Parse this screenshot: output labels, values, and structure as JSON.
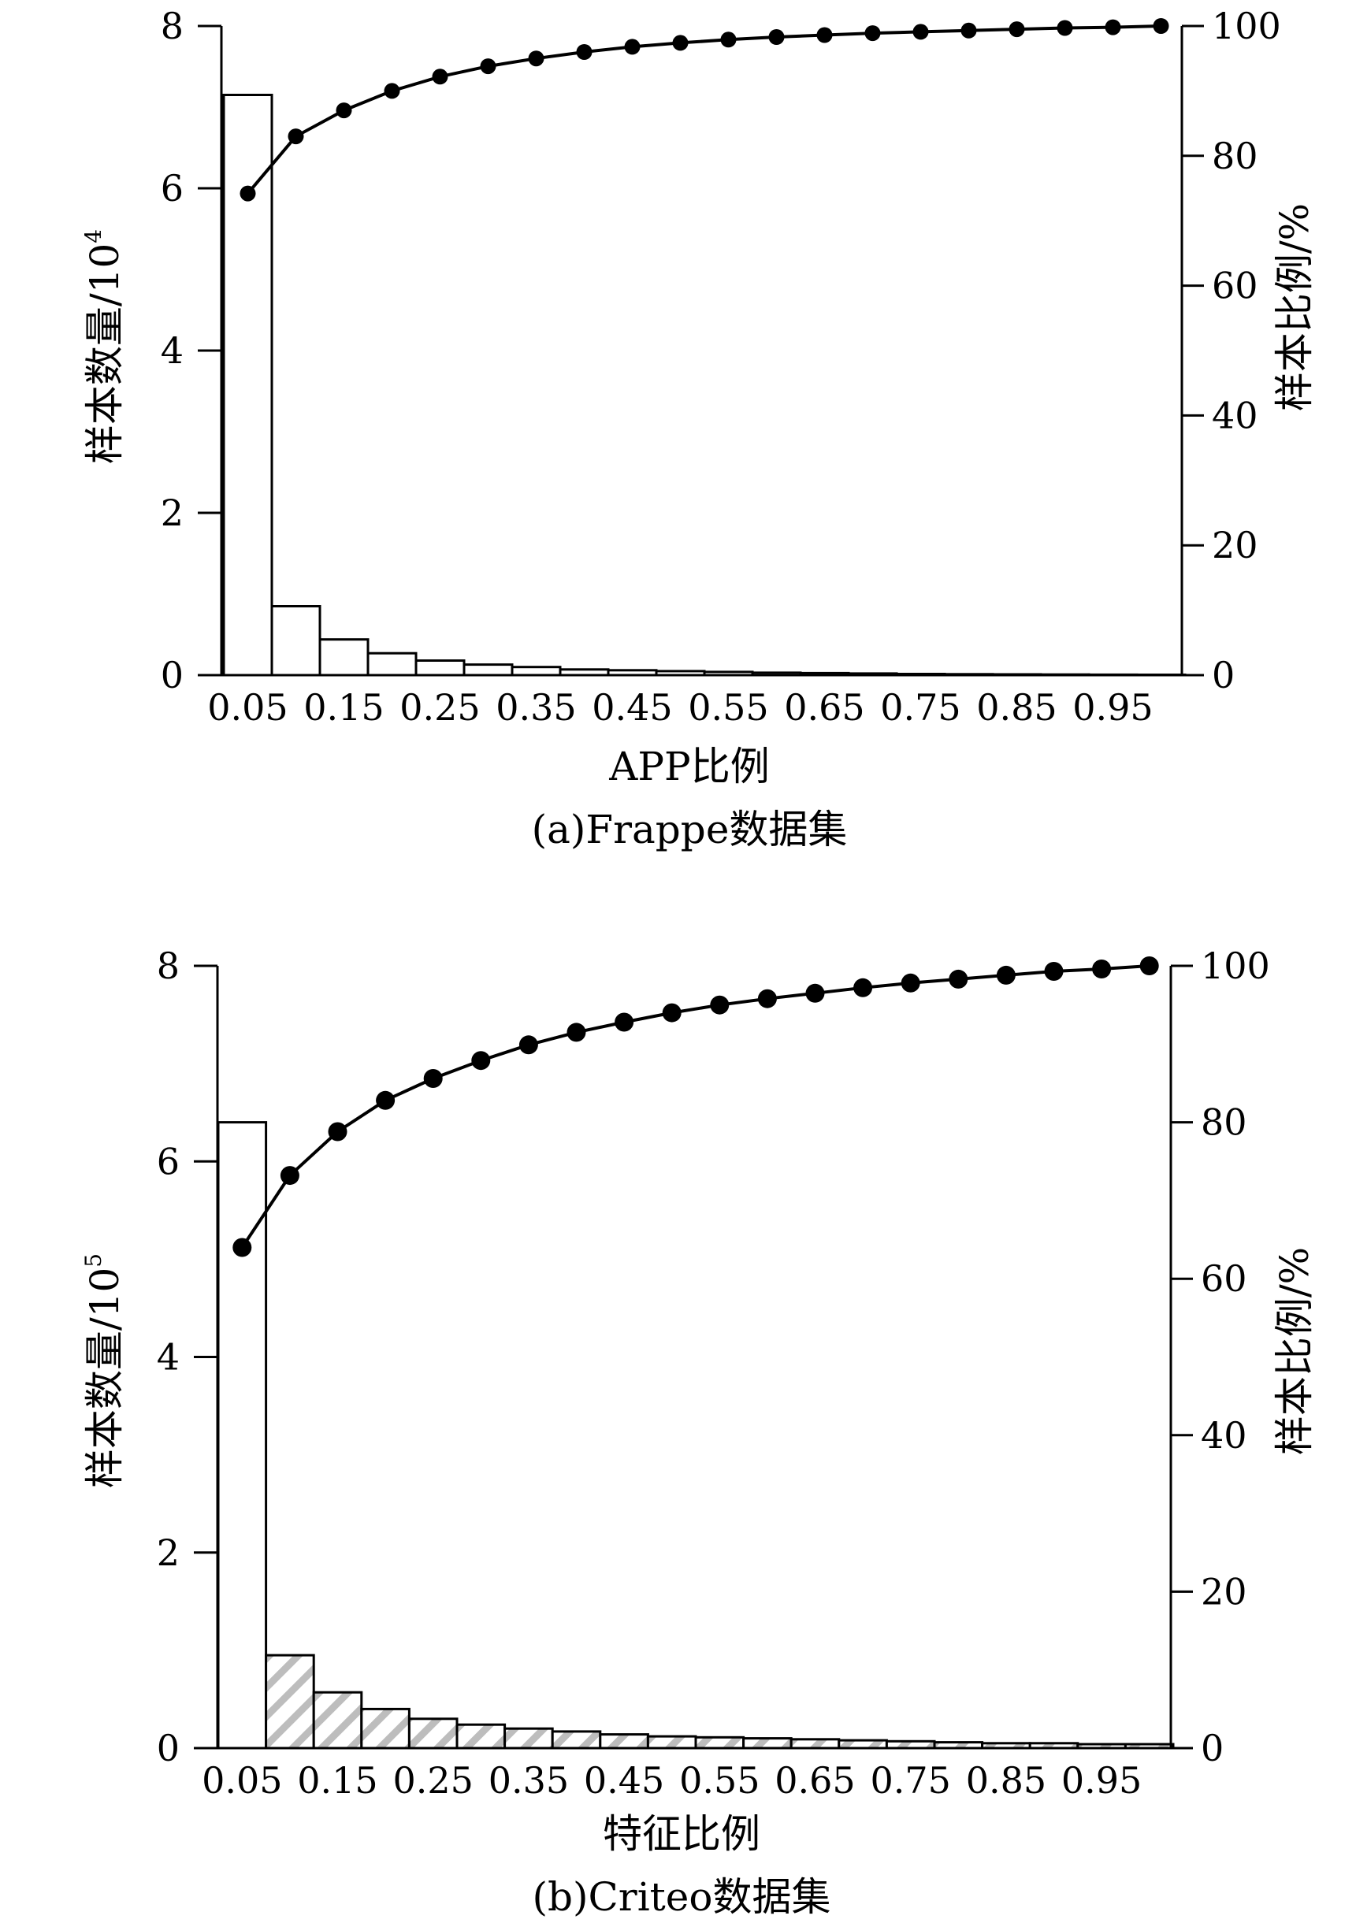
{
  "charts": [
    {
      "id": "a",
      "caption": "(a)Frappe数据集",
      "xlabel": "APP比例",
      "ylabel_left_base": "样本数量/10",
      "ylabel_left_exp": "4",
      "ylabel_right": "样本比例/%",
      "x_tick_labels": [
        "0.05",
        "0.15",
        "0.25",
        "0.35",
        "0.45",
        "0.55",
        "0.65",
        "0.75",
        "0.85",
        "0.95"
      ],
      "y_left_ticks": [
        "0",
        "2",
        "4",
        "6",
        "8"
      ],
      "y_right_ticks": [
        "0",
        "20",
        "40",
        "60",
        "80",
        "100"
      ]
    },
    {
      "id": "b",
      "caption": "(b)Criteo数据集",
      "xlabel": "特征比例",
      "ylabel_left_base": "样本数量/10",
      "ylabel_left_exp": "5",
      "ylabel_right": "样本比例/%",
      "x_tick_labels": [
        "0.05",
        "0.15",
        "0.25",
        "0.35",
        "0.45",
        "0.55",
        "0.65",
        "0.75",
        "0.85",
        "0.95"
      ],
      "y_left_ticks": [
        "0",
        "2",
        "4",
        "6",
        "8"
      ],
      "y_right_ticks": [
        "0",
        "20",
        "40",
        "60",
        "80",
        "100"
      ]
    }
  ],
  "chart_data": [
    {
      "type": "bar",
      "title": "(a)Frappe数据集",
      "xlabel": "APP比例",
      "ylabel": "样本数量/10^4",
      "y2label": "样本比例/%",
      "ylim": [
        0,
        8
      ],
      "y2lim": [
        0,
        100
      ],
      "categories": [
        "0.05",
        "0.10",
        "0.15",
        "0.20",
        "0.25",
        "0.30",
        "0.35",
        "0.40",
        "0.45",
        "0.50",
        "0.55",
        "0.60",
        "0.65",
        "0.70",
        "0.75",
        "0.80",
        "0.85",
        "0.90",
        "0.95",
        "1.00"
      ],
      "series": [
        {
          "type": "bar",
          "axis": "left",
          "values": [
            7.15,
            0.85,
            0.44,
            0.27,
            0.18,
            0.13,
            0.1,
            0.07,
            0.06,
            0.05,
            0.04,
            0.03,
            0.025,
            0.02,
            0.015,
            0.012,
            0.01,
            0.008,
            0.006,
            0.005
          ]
        },
        {
          "type": "line",
          "axis": "right",
          "values": [
            74.2,
            83.0,
            87.0,
            90.0,
            92.2,
            93.8,
            95.0,
            96.0,
            96.8,
            97.4,
            97.9,
            98.3,
            98.6,
            98.9,
            99.1,
            99.3,
            99.5,
            99.7,
            99.8,
            100.0
          ]
        }
      ],
      "bar_pattern": "none"
    },
    {
      "type": "bar",
      "title": "(b)Criteo数据集",
      "xlabel": "特征比例",
      "ylabel": "样本数量/10^5",
      "y2label": "样本比例/%",
      "ylim": [
        0,
        8
      ],
      "y2lim": [
        0,
        100
      ],
      "categories": [
        "0.05",
        "0.10",
        "0.15",
        "0.20",
        "0.25",
        "0.30",
        "0.35",
        "0.40",
        "0.45",
        "0.50",
        "0.55",
        "0.60",
        "0.65",
        "0.70",
        "0.75",
        "0.80",
        "0.85",
        "0.90",
        "0.95",
        "1.00"
      ],
      "series": [
        {
          "type": "bar",
          "axis": "left",
          "values": [
            6.4,
            0.95,
            0.57,
            0.4,
            0.3,
            0.24,
            0.2,
            0.17,
            0.14,
            0.12,
            0.11,
            0.1,
            0.09,
            0.08,
            0.07,
            0.06,
            0.05,
            0.05,
            0.04,
            0.04
          ]
        },
        {
          "type": "line",
          "axis": "right",
          "values": [
            64.0,
            73.2,
            78.8,
            82.8,
            85.6,
            87.9,
            89.9,
            91.5,
            92.8,
            94.0,
            95.0,
            95.8,
            96.5,
            97.2,
            97.8,
            98.3,
            98.8,
            99.3,
            99.6,
            100.0
          ]
        }
      ],
      "bar_pattern": "hatched"
    }
  ]
}
